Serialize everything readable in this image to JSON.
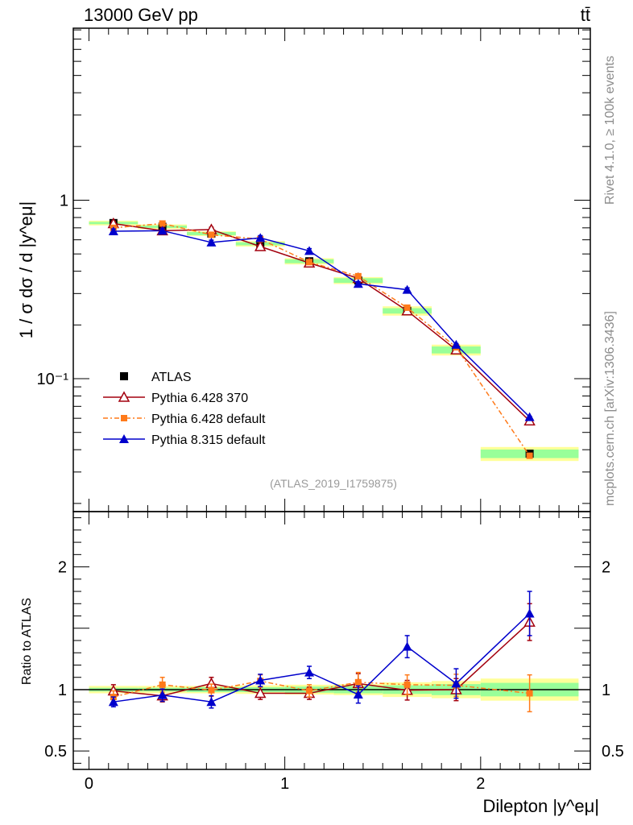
{
  "header": {
    "energy_label": "13000 GeV pp",
    "process_label": "tt̄"
  },
  "side_text": {
    "rivet": "Rivet 4.1.0, ≥ 100k events",
    "mcplots": "mcplots.cern.ch [arXiv:1306.3436]"
  },
  "analysis_label": "(ATLAS_2019_I1759875)",
  "chart_data": [
    {
      "type": "line",
      "title": "13000 GeV pp",
      "ylabel": "1 / σ dσ / d |y^eμ|",
      "xlabel": "",
      "xlim": [
        -0.08,
        2.56
      ],
      "ylim": [
        0.018,
        9.2
      ],
      "yscale": "log",
      "y_tick_labels": [
        "10⁻¹",
        "1"
      ],
      "legend_position": "bottom-left",
      "x": [
        0.125,
        0.375,
        0.625,
        0.875,
        1.125,
        1.375,
        1.625,
        1.875,
        2.25
      ],
      "series": [
        {
          "name": "ATLAS",
          "color": "#000000",
          "marker": "square",
          "values": [
            0.745,
            0.71,
            0.65,
            0.57,
            0.455,
            0.355,
            0.24,
            0.145,
            0.038
          ],
          "band_total": [
            0.03,
            0.03,
            0.03,
            0.035,
            0.04,
            0.045,
            0.06,
            0.07,
            0.09
          ],
          "band_stat": [
            0.015,
            0.015,
            0.02,
            0.02,
            0.025,
            0.03,
            0.035,
            0.045,
            0.055
          ]
        },
        {
          "name": "Pythia 6.428 370",
          "color": "#a3000e",
          "marker": "open-triangle",
          "values": [
            0.74,
            0.675,
            0.685,
            0.55,
            0.445,
            0.365,
            0.24,
            0.145,
            0.058
          ],
          "errors": [
            0.03,
            0.03,
            0.03,
            0.03,
            0.025,
            0.03,
            0.02,
            0.012,
            0.008
          ]
        },
        {
          "name": "Pythia 6.428 default",
          "color": "#ff7a1a",
          "marker": "filled-square",
          "values": [
            0.7,
            0.74,
            0.64,
            0.605,
            0.45,
            0.375,
            0.25,
            0.15,
            0.037
          ],
          "errors": [
            0.03,
            0.03,
            0.03,
            0.03,
            0.025,
            0.03,
            0.02,
            0.012,
            0.006
          ]
        },
        {
          "name": "Pythia 8.315 default",
          "color": "#0000cc",
          "marker": "filled-triangle",
          "values": [
            0.67,
            0.675,
            0.58,
            0.615,
            0.52,
            0.34,
            0.315,
            0.155,
            0.061
          ],
          "errors": [
            0.03,
            0.03,
            0.03,
            0.03,
            0.03,
            0.03,
            0.025,
            0.015,
            0.008
          ]
        }
      ]
    },
    {
      "type": "line",
      "title": "",
      "ylabel": "Ratio to ATLAS",
      "xlabel": "Dilepton |y^eμ|",
      "xlim": [
        -0.08,
        2.56
      ],
      "ylim": [
        0.35,
        2.45
      ],
      "x_tick_labels": [
        "0",
        "1",
        "2"
      ],
      "y_tick_labels": [
        "0.5",
        "1",
        "2"
      ],
      "x": [
        0.125,
        0.375,
        0.625,
        0.875,
        1.125,
        1.375,
        1.625,
        1.875,
        2.25
      ],
      "series": [
        {
          "name": "Pythia 6.428 370",
          "color": "#a3000e",
          "values": [
            0.99,
            0.95,
            1.05,
            0.97,
            0.97,
            1.05,
            0.995,
            1.0,
            1.55
          ],
          "errors": [
            0.05,
            0.05,
            0.05,
            0.05,
            0.05,
            0.08,
            0.08,
            0.09,
            0.15
          ]
        },
        {
          "name": "Pythia 6.428 default",
          "color": "#ff7a1a",
          "values": [
            0.94,
            1.04,
            0.995,
            1.07,
            0.99,
            1.06,
            1.04,
            1.035,
            0.97
          ],
          "errors": [
            0.05,
            0.06,
            0.05,
            0.05,
            0.05,
            0.08,
            0.08,
            0.09,
            0.15
          ]
        },
        {
          "name": "Pythia 8.315 default",
          "color": "#0000cc",
          "values": [
            0.9,
            0.955,
            0.9,
            1.075,
            1.14,
            0.96,
            1.35,
            1.05,
            1.62
          ],
          "errors": [
            0.04,
            0.05,
            0.05,
            0.05,
            0.05,
            0.07,
            0.09,
            0.12,
            0.18
          ]
        }
      ]
    }
  ]
}
